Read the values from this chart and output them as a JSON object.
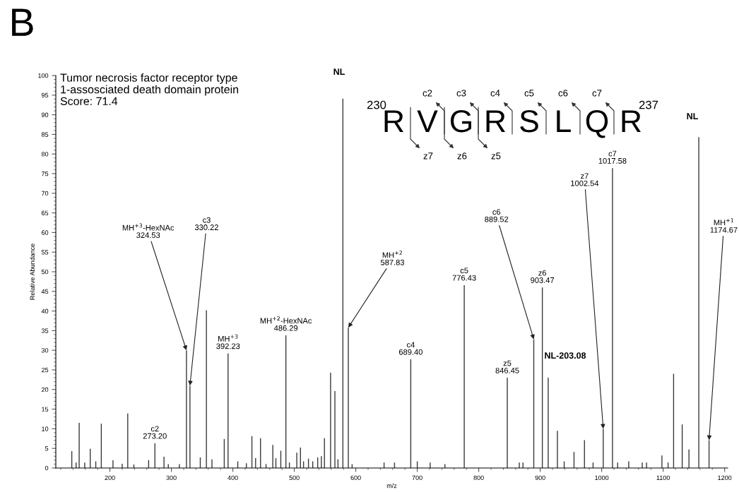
{
  "chart_data": {
    "type": "bar",
    "title": "B",
    "xlabel": "m/z",
    "ylabel": "Relative Abundance",
    "x": [
      138,
      145,
      150,
      159,
      168,
      177,
      186,
      205,
      220,
      229,
      239,
      263,
      273.2,
      288,
      295,
      313,
      324.53,
      330.22,
      347,
      357,
      366,
      386,
      392.23,
      408,
      422,
      431,
      437,
      445,
      454,
      465,
      470,
      478,
      486.29,
      492,
      504,
      510,
      515,
      523,
      530,
      538,
      544,
      549,
      559,
      566,
      571,
      579,
      587.83,
      594,
      646,
      663,
      689.4,
      700,
      721,
      745,
      776.43,
      846.45,
      866,
      872,
      889.52,
      903.47,
      913,
      928,
      939,
      955,
      972,
      986,
      1002.54,
      1017.58,
      1026,
      1044,
      1066,
      1073,
      1098,
      1108,
      1117,
      1131,
      1142,
      1158,
      1174.67
    ],
    "values": [
      4.3,
      1.4,
      11.5,
      1.4,
      4.9,
      1.7,
      11.3,
      2.0,
      1.1,
      13.9,
      0.9,
      2.0,
      6.3,
      2.9,
      1.0,
      1.0,
      30,
      21,
      2.7,
      40.2,
      2.2,
      7.4,
      29.2,
      1.7,
      1.2,
      8.1,
      2.5,
      7.6,
      1.0,
      5.9,
      2.5,
      4.4,
      33.8,
      1.4,
      3.9,
      5.2,
      1.7,
      2.4,
      1.7,
      2.7,
      3.0,
      7.6,
      24.3,
      19.6,
      2.2,
      94.1,
      35.8,
      1.0,
      1.4,
      1.4,
      27.7,
      1.7,
      1.4,
      1.0,
      46.6,
      23,
      1.4,
      1.4,
      32.8,
      46,
      23,
      9.5,
      1.7,
      4.1,
      7.1,
      1.4,
      10,
      76.4,
      1.4,
      1.7,
      1.4,
      1.4,
      3.2,
      1.4,
      24,
      11.1,
      4.7,
      84.3,
      7.1
    ],
    "color": "#3a3a3a",
    "xlim": [
      112,
      1205
    ],
    "xticks": [
      200,
      300,
      400,
      500,
      600,
      700,
      800,
      900,
      1000,
      1100,
      1200
    ],
    "ylim": [
      0,
      100
    ],
    "yticks": [
      0,
      5,
      10,
      15,
      20,
      25,
      30,
      35,
      40,
      45,
      50,
      55,
      60,
      65,
      70,
      75,
      80,
      85,
      90,
      95,
      100
    ],
    "grid": false,
    "legend": false,
    "annotations": [
      "Tumor necrosis factor receptor type\n1-assosciated death domain protein\nScore: 71.4",
      {
        "text": "c2\n273.20",
        "x": 273.2,
        "y": 6.3
      },
      {
        "text": "MH$^{+3}$-HexNAc\n324.53",
        "x": 324.53,
        "y": 30
      },
      {
        "text": "c3\n330.22",
        "x": 330.22,
        "y": 21
      },
      {
        "text": "MH$^{+3}$\n392.23",
        "x": 392.23,
        "y": 29.2
      },
      {
        "text": "MH$^{+2}$-HexNAc\n486.29",
        "x": 486.29,
        "y": 33.8
      },
      {
        "text": "MH$^{+2}$\n587.83",
        "x": 587.83,
        "y": 35.8
      },
      {
        "text": "c4\n689.40",
        "x": 689.4,
        "y": 27.7
      },
      {
        "text": "c5\n776.43",
        "x": 776.43,
        "y": 46.6
      },
      {
        "text": "z5\n846.45",
        "x": 846.45,
        "y": 23
      },
      {
        "text": "c6\n889.52",
        "x": 889.52,
        "y": 32.8
      },
      {
        "text": "z6\n903.47",
        "x": 903.47,
        "y": 46
      },
      {
        "text": "z7\n1002.54",
        "x": 1002.54,
        "y": 10
      },
      {
        "text": "c7\n1017.58",
        "x": 1017.58,
        "y": 76.4
      },
      {
        "text": "MH$^{+1}$\n1174.67",
        "x": 1174.67,
        "y": 7.1
      },
      "NL",
      "NL-203.08",
      "NL",
      "230",
      "RVGRSLQR",
      "237",
      "c2",
      "c3",
      "c4",
      "c5",
      "c6",
      "c7",
      "z7",
      "z6",
      "z5"
    ]
  }
}
